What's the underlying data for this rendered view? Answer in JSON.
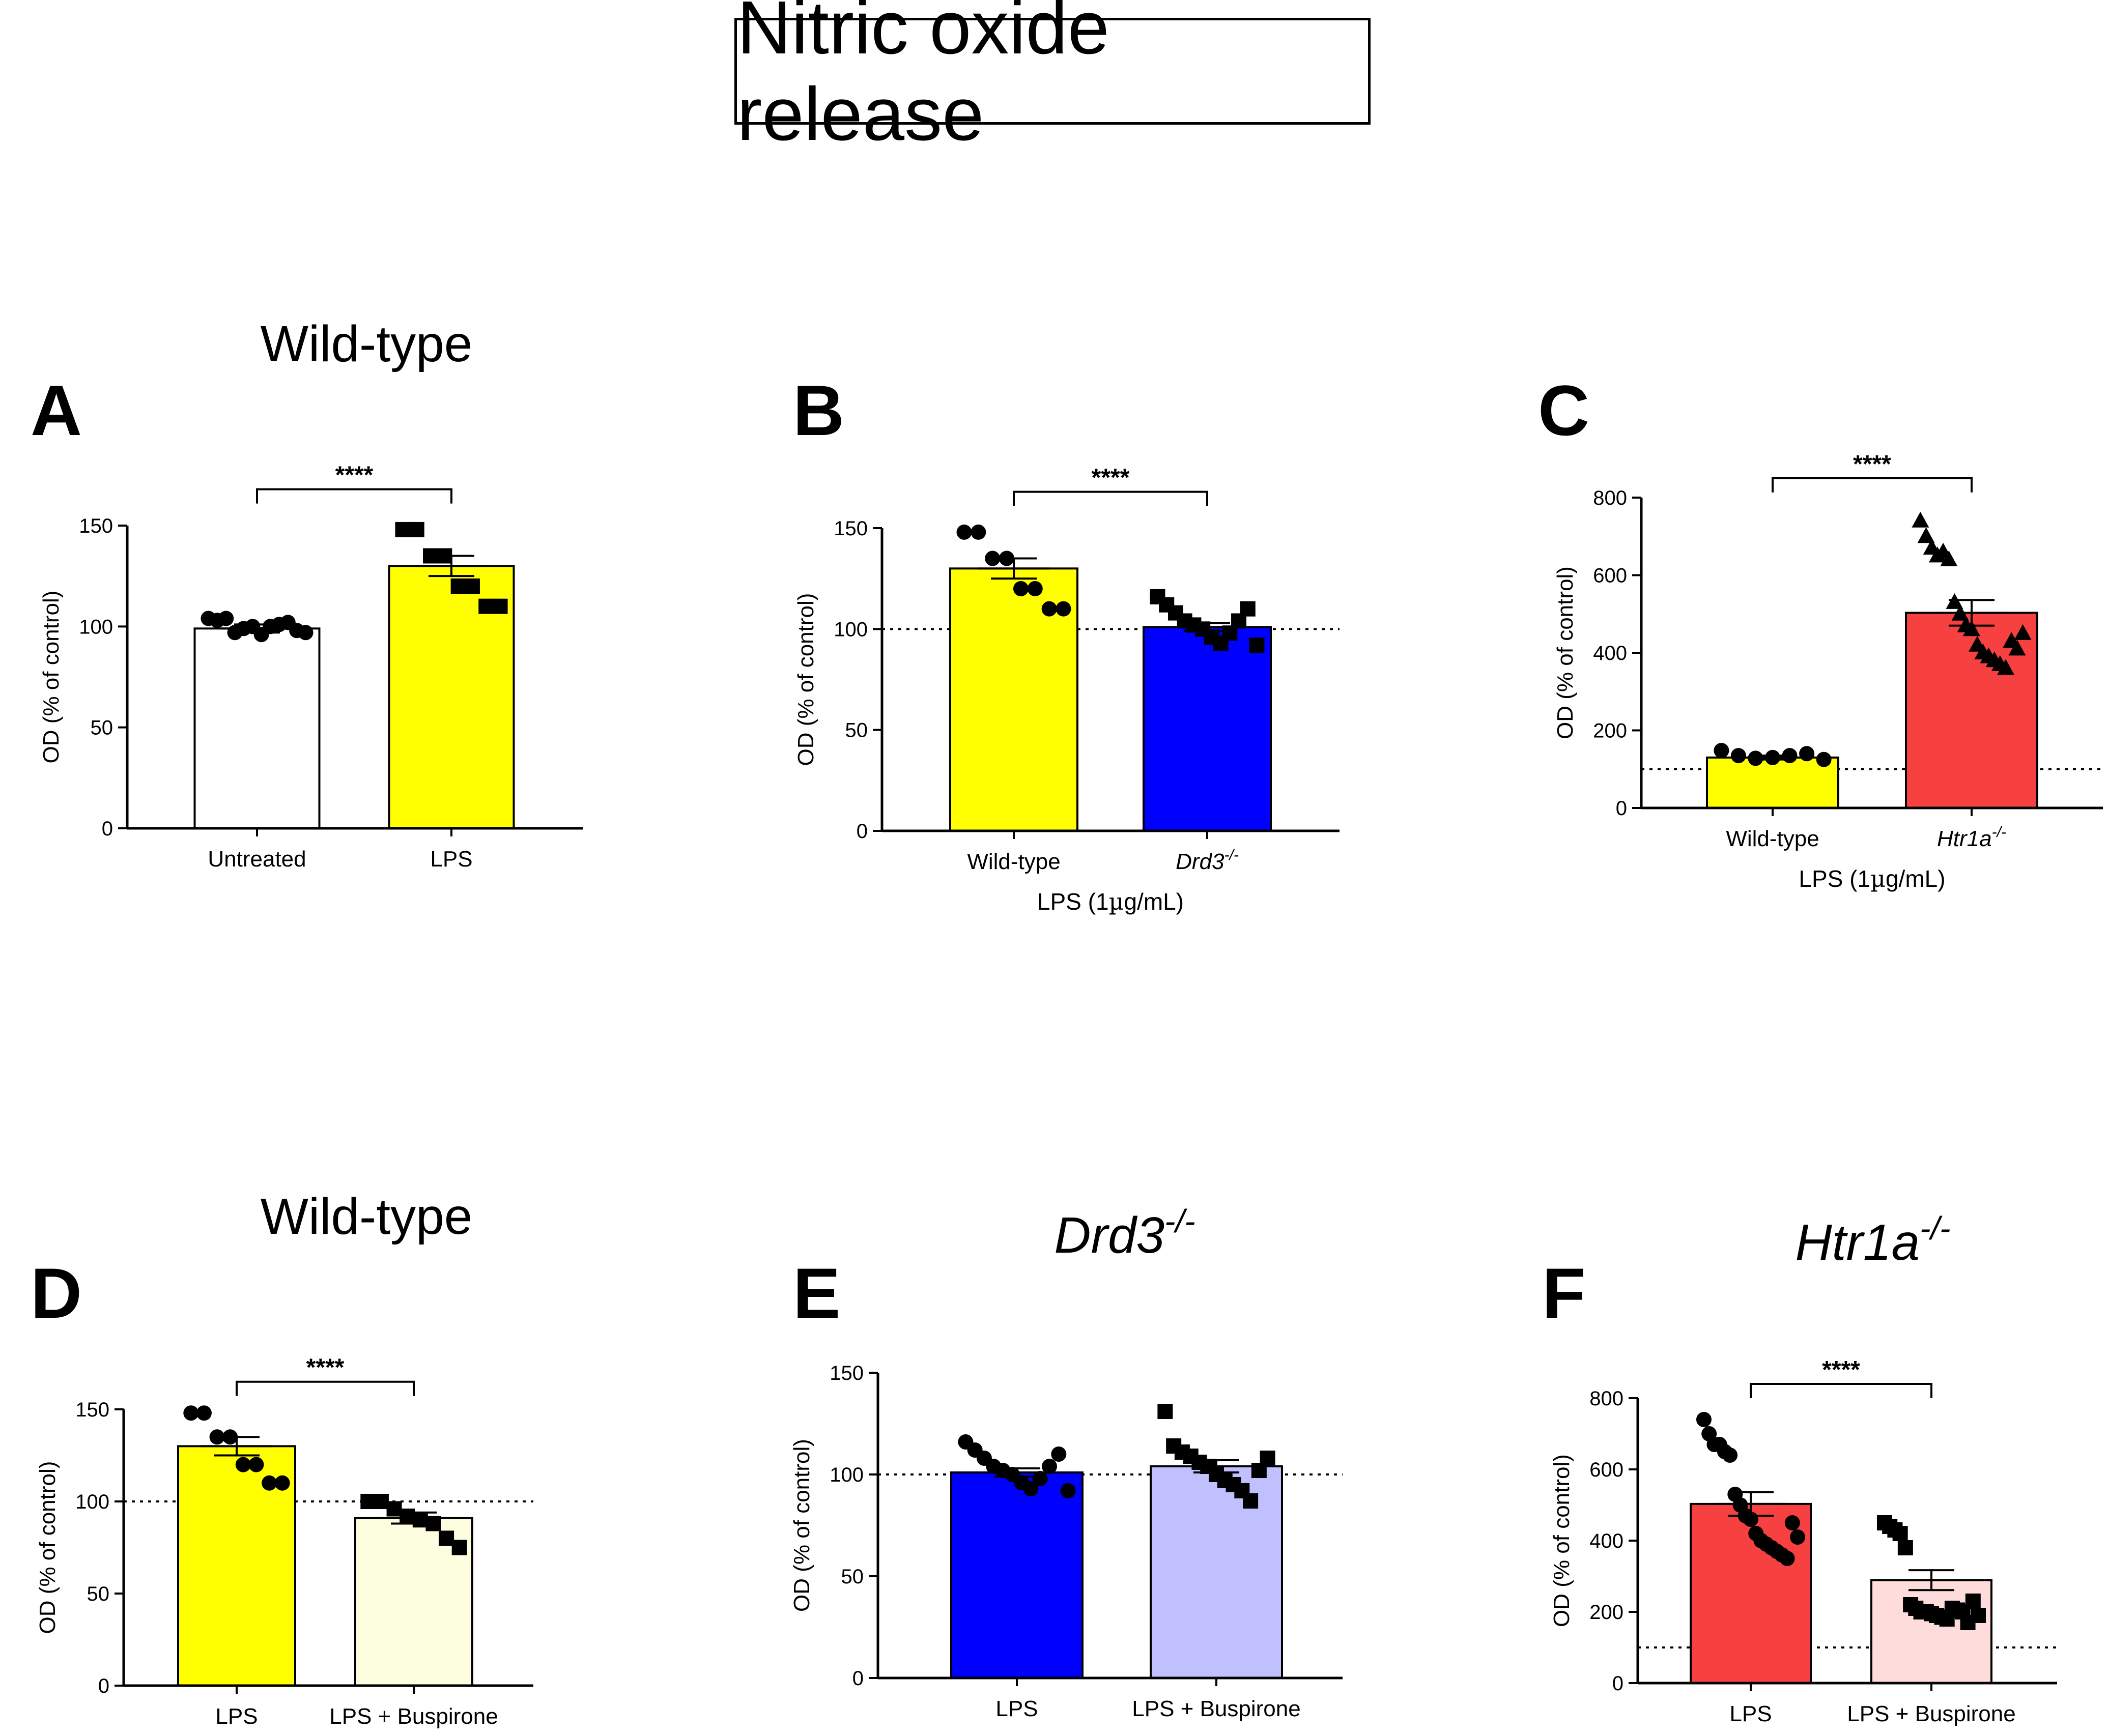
{
  "figure_title": "Nitric oxide release",
  "colors": {
    "yellow": "#ffff00",
    "blue": "#0000ff",
    "red": "#f74040",
    "white": "#ffffff",
    "cream": "#fdfde0",
    "lavender": "#c0c0ff",
    "pink": "#ffdcdc"
  },
  "chart_data": [
    {
      "panel": "A",
      "type": "bar",
      "title": "Wild-type",
      "title_italic": false,
      "ylabel": "OD (% of control)",
      "xlabel": "",
      "ylim": [
        0,
        150
      ],
      "yticks": [
        0,
        50,
        100,
        150
      ],
      "baseline": null,
      "categories": [
        {
          "label": "Untreated",
          "italic": false,
          "mean": 99,
          "sem": 2,
          "color": "white",
          "marker": "circle",
          "points": [
            104,
            103,
            104,
            97,
            99,
            100,
            96,
            100,
            101,
            102,
            98,
            97
          ]
        },
        {
          "label": "LPS",
          "italic": false,
          "mean": 130,
          "sem": 5,
          "color": "yellow",
          "marker": "square",
          "points": [
            148,
            148,
            135,
            135,
            120,
            120,
            110,
            110
          ]
        }
      ],
      "significance": [
        {
          "from": 0,
          "to": 1,
          "label": "****",
          "y": 168
        }
      ]
    },
    {
      "panel": "B",
      "type": "bar",
      "title": "",
      "title_italic": false,
      "ylabel": "OD (% of control)",
      "xlabel": "LPS (1µg/mL)",
      "ylim": [
        0,
        150
      ],
      "yticks": [
        0,
        50,
        100,
        150
      ],
      "baseline": 100,
      "categories": [
        {
          "label": "Wild-type",
          "italic": false,
          "mean": 130,
          "sem": 5,
          "color": "yellow",
          "marker": "circle",
          "points": [
            148,
            148,
            135,
            135,
            120,
            120,
            110,
            110
          ]
        },
        {
          "label": "Drd3-/-",
          "italic": true,
          "mean": 101,
          "sem": 2,
          "color": "blue",
          "marker": "square",
          "points": [
            116,
            112,
            108,
            104,
            102,
            100,
            96,
            93,
            98,
            104,
            110,
            92
          ]
        }
      ],
      "significance": [
        {
          "from": 0,
          "to": 1,
          "label": "****",
          "y": 168
        }
      ]
    },
    {
      "panel": "C",
      "type": "bar",
      "title": "",
      "title_italic": false,
      "ylabel": "OD (% of control)",
      "xlabel": "LPS (1µg/mL)",
      "ylim": [
        0,
        800
      ],
      "yticks": [
        0,
        200,
        400,
        600,
        800
      ],
      "baseline": 100,
      "categories": [
        {
          "label": "Wild-type",
          "italic": false,
          "mean": 130,
          "sem": 5,
          "color": "yellow",
          "marker": "circle",
          "points": [
            148,
            135,
            128,
            130,
            135,
            140,
            125
          ]
        },
        {
          "label": "Htr1a-/-",
          "italic": true,
          "mean": 503,
          "sem": 33,
          "color": "red",
          "marker": "triangle",
          "points": [
            740,
            700,
            670,
            650,
            660,
            640,
            530,
            500,
            470,
            460,
            420,
            400,
            390,
            380,
            370,
            360,
            430,
            410,
            450
          ]
        }
      ],
      "significance": [
        {
          "from": 0,
          "to": 1,
          "label": "****",
          "y": 850
        }
      ]
    },
    {
      "panel": "D",
      "type": "bar",
      "title": "Wild-type",
      "title_italic": false,
      "ylabel": "OD (% of control)",
      "xlabel": "",
      "ylim": [
        0,
        150
      ],
      "yticks": [
        0,
        50,
        100,
        150
      ],
      "baseline": 100,
      "categories": [
        {
          "label": "LPS",
          "italic": false,
          "mean": 130,
          "sem": 5,
          "color": "yellow",
          "marker": "circle",
          "points": [
            148,
            148,
            135,
            135,
            120,
            120,
            110,
            110
          ]
        },
        {
          "label": "LPS + Buspirone",
          "italic": false,
          "mean": 91,
          "sem": 3,
          "color": "cream",
          "marker": "square",
          "points": [
            100,
            100,
            96,
            92,
            90,
            88,
            80,
            75
          ]
        }
      ],
      "significance": [
        {
          "from": 0,
          "to": 1,
          "label": "****",
          "y": 165
        }
      ]
    },
    {
      "panel": "E",
      "type": "bar",
      "title": "Drd3",
      "title_sup": "-/-",
      "title_italic": true,
      "ylabel": "OD (% of control)",
      "xlabel": "",
      "ylim": [
        0,
        150
      ],
      "yticks": [
        0,
        50,
        100,
        150
      ],
      "baseline": 100,
      "categories": [
        {
          "label": "LPS",
          "italic": false,
          "mean": 101,
          "sem": 2,
          "color": "blue",
          "marker": "circle",
          "points": [
            116,
            112,
            108,
            104,
            102,
            100,
            96,
            93,
            98,
            104,
            110,
            92
          ]
        },
        {
          "label": "LPS + Buspirone",
          "italic": false,
          "mean": 104,
          "sem": 3,
          "color": "lavender",
          "marker": "square",
          "points": [
            131,
            114,
            111,
            109,
            106,
            104,
            100,
            97,
            95,
            92,
            87,
            102,
            108
          ]
        }
      ],
      "significance": []
    },
    {
      "panel": "F",
      "type": "bar",
      "title": "Htr1a",
      "title_sup": "-/-",
      "title_italic": true,
      "ylabel": "OD (% of control)",
      "xlabel": "",
      "ylim": [
        0,
        800
      ],
      "yticks": [
        0,
        200,
        400,
        600,
        800
      ],
      "baseline": 100,
      "categories": [
        {
          "label": "LPS",
          "italic": false,
          "mean": 503,
          "sem": 33,
          "color": "red",
          "marker": "circle",
          "points": [
            740,
            700,
            670,
            670,
            650,
            640,
            530,
            500,
            470,
            460,
            420,
            400,
            390,
            380,
            370,
            360,
            350,
            450,
            410
          ]
        },
        {
          "label": "LPS + Buspirone",
          "italic": false,
          "mean": 289,
          "sem": 28,
          "color": "pink",
          "marker": "square",
          "points": [
            450,
            440,
            430,
            420,
            380,
            220,
            210,
            200,
            200,
            195,
            190,
            185,
            180,
            210,
            205,
            200,
            170,
            230,
            190
          ]
        }
      ],
      "significance": [
        {
          "from": 0,
          "to": 1,
          "label": "****",
          "y": 840
        }
      ]
    }
  ]
}
